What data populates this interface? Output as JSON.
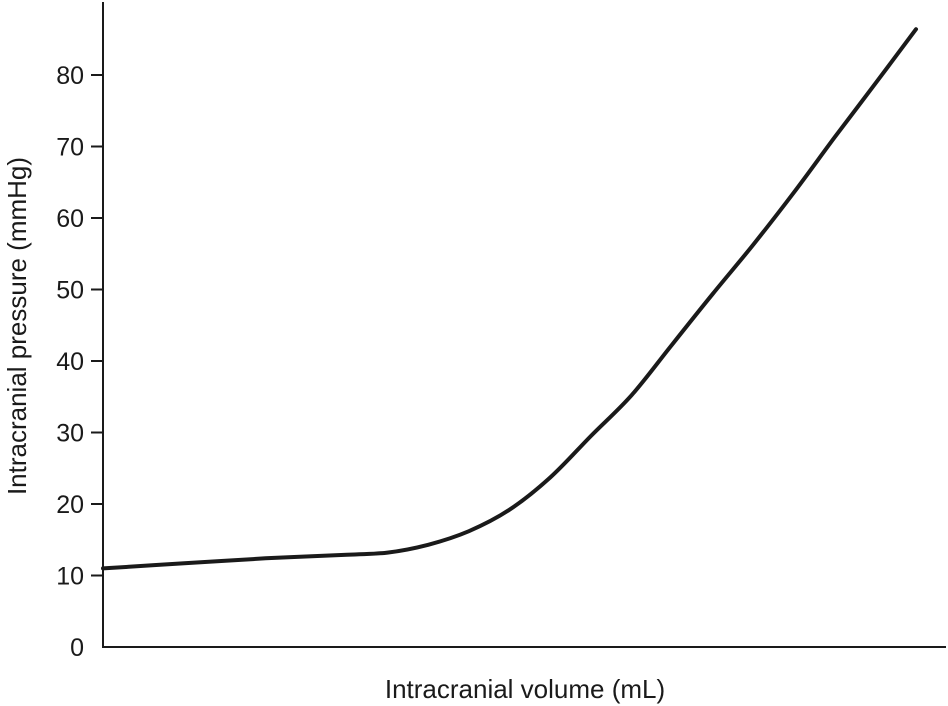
{
  "chart_data": {
    "type": "line",
    "title": "",
    "xlabel": "Intracranial volume (mL)",
    "ylabel": "Intracranial pressure (mmHg)",
    "ylim": [
      0,
      90
    ],
    "yticks": [
      0,
      10,
      20,
      30,
      40,
      50,
      60,
      70,
      80
    ],
    "x_tick_labels": false,
    "grid": false,
    "legend": "none",
    "line_color": "#1a1a1a",
    "series": [
      {
        "x": [
          0,
          10,
          20,
          30,
          35,
          40,
          45,
          50,
          55,
          60,
          65,
          70,
          75,
          80,
          85,
          90,
          95,
          100
        ],
        "values": [
          11.0,
          11.7,
          12.4,
          12.9,
          13.2,
          14.3,
          16.2,
          19.2,
          23.7,
          29.5,
          35.2,
          42.3,
          49.4,
          56.3,
          63.6,
          71.3,
          78.8,
          86.4
        ]
      }
    ]
  }
}
